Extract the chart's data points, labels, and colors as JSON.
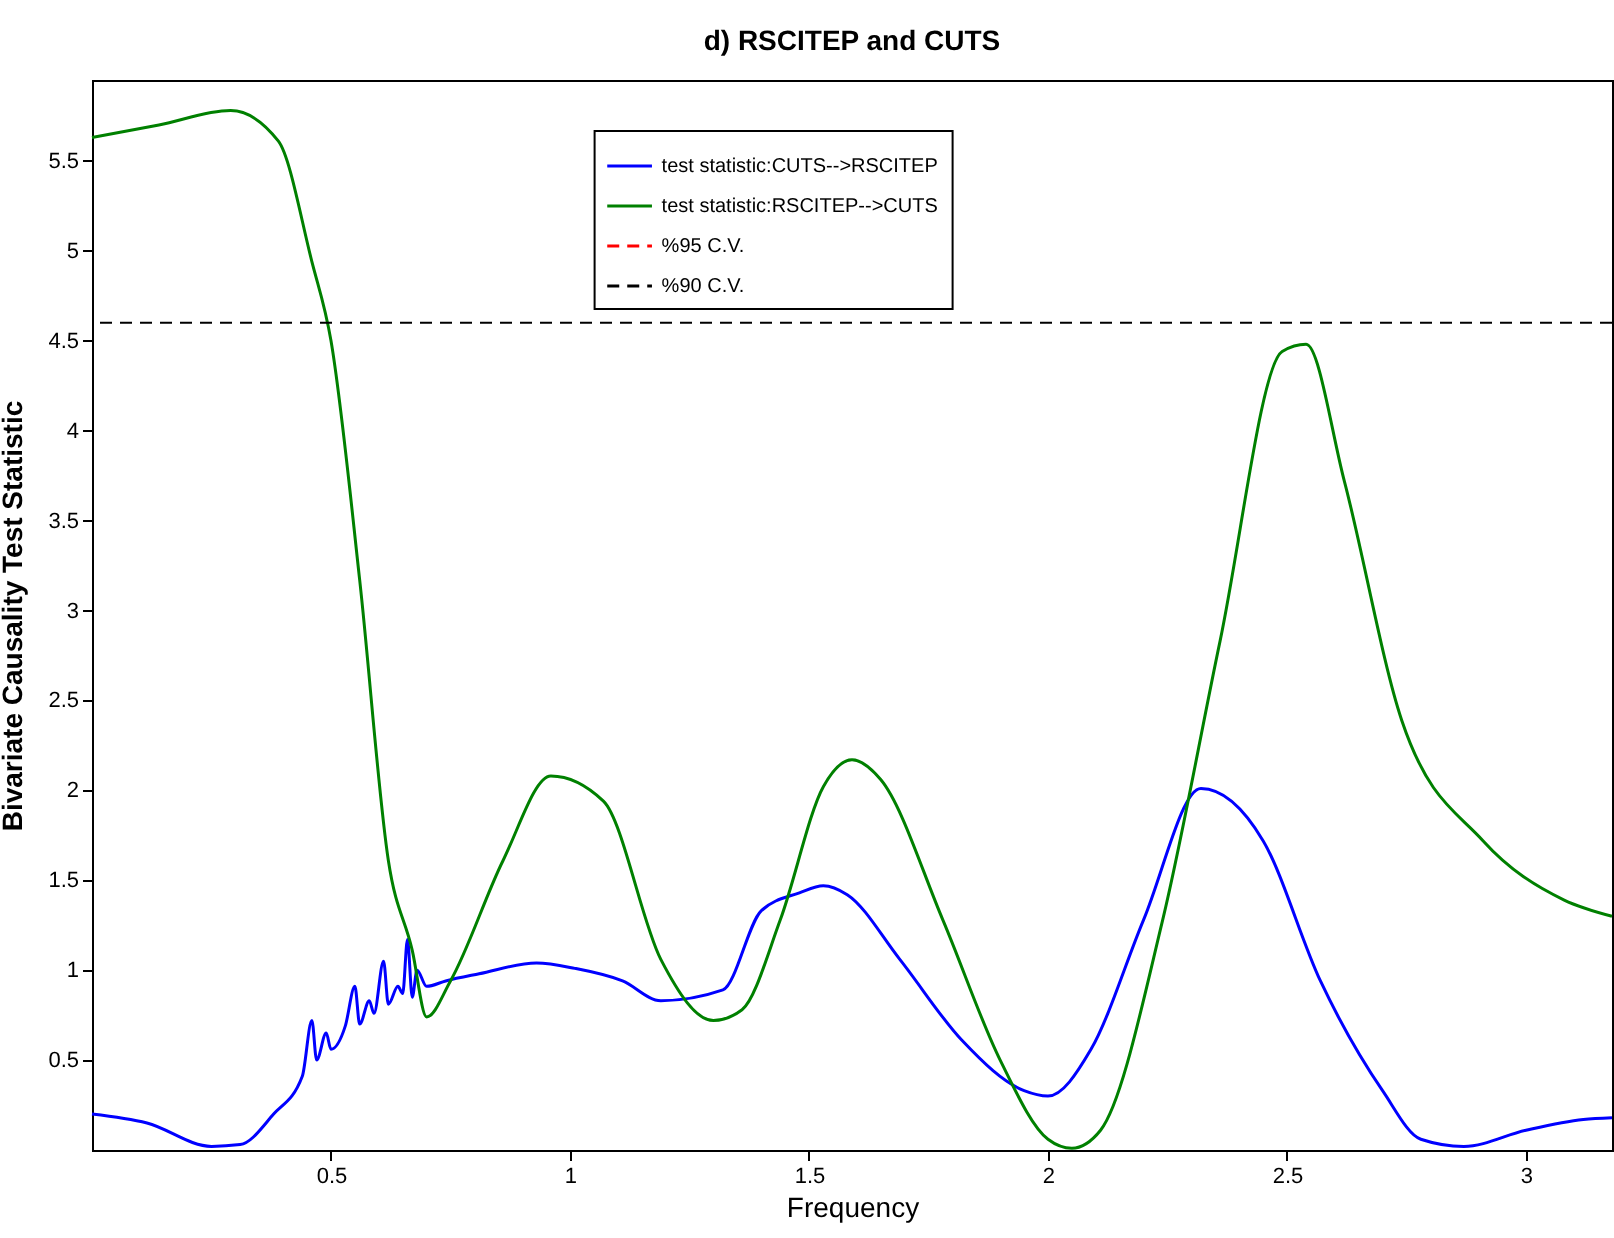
{
  "chart_data": {
    "type": "line",
    "title": "d) RSCITEP and CUTS",
    "xlabel": "Frequency",
    "ylabel": "Bivariate Causality Test Statistic",
    "xlim": [
      0,
      3.18
    ],
    "xticks": [
      0.5,
      1,
      1.5,
      2,
      2.5,
      3
    ],
    "ylim": [
      0,
      5.95
    ],
    "yticks": [
      0.5,
      1,
      1.5,
      2,
      2.5,
      3,
      3.5,
      4,
      4.5,
      5,
      5.5
    ],
    "grid": false,
    "legend": "top",
    "line_style": "solid",
    "marker": "none",
    "series": [
      {
        "name": "test statistic:CUTS-->RSCITEP",
        "color": "#0000ff",
        "x": [
          0,
          0.115,
          0.25,
          0.31,
          0.38,
          0.44,
          0.46,
          0.47,
          0.49,
          0.5,
          0.53,
          0.55,
          0.56,
          0.58,
          0.59,
          0.61,
          0.62,
          0.64,
          0.65,
          0.66,
          0.67,
          0.68,
          0.7,
          0.74,
          0.81,
          0.93,
          1.01,
          1.11,
          1.19,
          1.32,
          1.4,
          1.48,
          1.53,
          1.58,
          1.69,
          1.82,
          1.95,
          2.0,
          2.09,
          2.2,
          2.32,
          2.45,
          2.57,
          2.7,
          2.78,
          2.87,
          3.0,
          3.12,
          3.18
        ],
        "values": [
          0.2,
          0.15,
          0.02,
          0.03,
          0.2,
          0.41,
          0.72,
          0.5,
          0.65,
          0.56,
          0.69,
          0.91,
          0.7,
          0.83,
          0.76,
          1.05,
          0.81,
          0.91,
          0.87,
          1.17,
          0.85,
          1.0,
          0.91,
          0.94,
          0.98,
          1.04,
          1.01,
          0.94,
          0.83,
          0.89,
          1.33,
          1.43,
          1.47,
          1.42,
          1.06,
          0.61,
          0.33,
          0.3,
          0.56,
          1.28,
          2.01,
          1.72,
          0.94,
          0.33,
          0.06,
          0.02,
          0.11,
          0.17,
          0.18
        ]
      },
      {
        "name": "test statistic:RSCITEP-->CUTS",
        "color": "#008000",
        "x": [
          0,
          0.14,
          0.29,
          0.39,
          0.46,
          0.5,
          0.56,
          0.62,
          0.67,
          0.7,
          0.75,
          0.86,
          0.96,
          1.07,
          1.19,
          1.3,
          1.36,
          1.44,
          1.53,
          1.59,
          1.65,
          1.78,
          1.9,
          2.0,
          2.05,
          2.11,
          2.24,
          2.36,
          2.49,
          2.54,
          2.62,
          2.74,
          2.91,
          3.08,
          3.18
        ],
        "values": [
          5.63,
          5.7,
          5.78,
          5.61,
          4.94,
          4.5,
          3.17,
          1.61,
          1.11,
          0.74,
          0.94,
          1.61,
          2.08,
          1.94,
          1.06,
          0.72,
          0.78,
          1.28,
          2.02,
          2.17,
          2.06,
          1.28,
          0.5,
          0.06,
          0.01,
          0.11,
          1.28,
          2.83,
          4.44,
          4.48,
          3.72,
          2.39,
          1.72,
          1.39,
          1.3
        ]
      }
    ],
    "ref_lines": [
      {
        "axis": "y",
        "value": null,
        "label": "%95 C.V.",
        "color": "#ff0000",
        "line_style": "dashed"
      },
      {
        "axis": "y",
        "value": 4.6,
        "label": "%90 C.V.",
        "color": "#000000",
        "line_style": "dashed"
      }
    ]
  }
}
